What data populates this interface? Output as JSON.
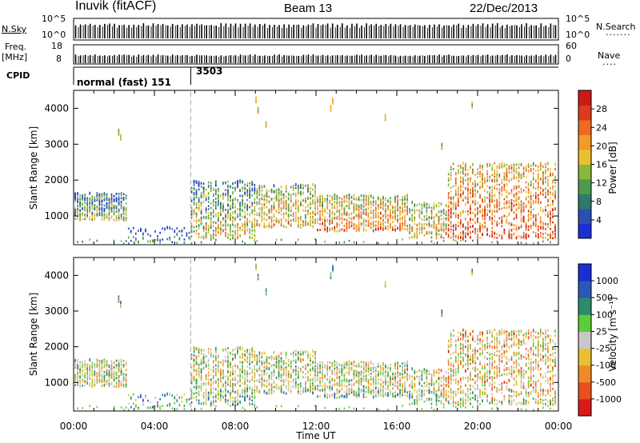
{
  "header": {
    "station": "Inuvik (fitACF)",
    "beam": "Beam 13",
    "date": "22/Dec/2013"
  },
  "strips": {
    "nsky_label": "N.Sky",
    "freq_label": "Freq.",
    "freq_unit": "[MHz]",
    "cpid_label": "CPID",
    "nsearch_label": "N.Search",
    "nave_label": "Nave",
    "sky_left_ticks": [
      "10^5",
      "10^0"
    ],
    "sky_right_ticks": [
      "10^5",
      "10^0"
    ],
    "freq_ticks": [
      "18",
      "8"
    ],
    "nave_ticks": [
      "60",
      "0"
    ],
    "cpid_segments": [
      {
        "label": "normal (fast) 151",
        "start_hour": 0.0,
        "end_hour": 5.8
      },
      {
        "label": "3503",
        "start_hour": 5.8,
        "end_hour": 24.0
      }
    ]
  },
  "chart_data": [
    {
      "type": "heatmap",
      "name": "power",
      "xlabel": "",
      "ylabel": "Slant Range [km]",
      "xlim": [
        0,
        24
      ],
      "ylim": [
        200,
        4500
      ],
      "yticks": [
        "1000",
        "2000",
        "3000",
        "4000"
      ],
      "colorbar_label": "Power [dB]",
      "colorbar_ticks": [
        "4",
        "8",
        "12",
        "16",
        "20",
        "24",
        "28"
      ],
      "colors": [
        "#1b2ed6",
        "#2b4fb0",
        "#2e7a6e",
        "#4f9a4a",
        "#8ab83a",
        "#e8c030",
        "#f39a28",
        "#ee6a22",
        "#de3a1e",
        "#cc1a18"
      ]
    },
    {
      "type": "heatmap",
      "name": "velocity",
      "xlabel": "Time UT",
      "ylabel": "Slant Range [km]",
      "xlim": [
        0,
        24
      ],
      "ylim": [
        200,
        4500
      ],
      "xticks": [
        "00:00",
        "04:00",
        "08:00",
        "12:00",
        "16:00",
        "20:00",
        "00:00"
      ],
      "yticks": [
        "1000",
        "2000",
        "3000",
        "4000"
      ],
      "colorbar_label": "Velocity [m s⁻¹]",
      "colorbar_ticks": [
        "1000",
        "500",
        "100",
        "25",
        "-25",
        "-100",
        "-500",
        "-1000"
      ],
      "colors": [
        "#1b2ed6",
        "#2b58b8",
        "#2e8a6a",
        "#5bcc3a",
        "#c8c8c8",
        "#e8c030",
        "#f08a28",
        "#e85020",
        "#d81a18"
      ]
    }
  ]
}
